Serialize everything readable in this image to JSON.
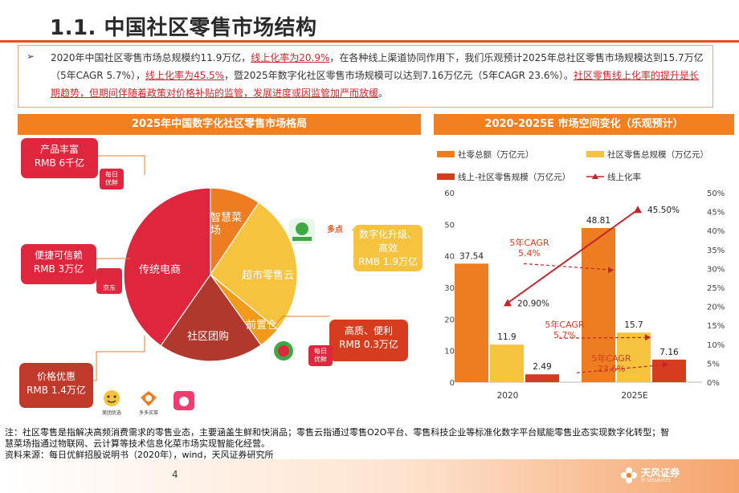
{
  "page": {
    "title": "1.1. 中国社区零售市场结构",
    "page_number": "4",
    "brand": "天风证券",
    "brand_sub": "TF SECURITIES"
  },
  "summary": {
    "bullet": "➢",
    "p1": "2020年中国社区零售市场总规模约11.9万亿，",
    "h1": "线上化率为20.9%",
    "p2": "，在各种线上渠道协同作用下，我们乐观预计2025年总社区零售市场规模达到15.7万亿（5年CAGR 5.7%），",
    "h2": "线上化率为45.5%",
    "p3": "，暨2025年数字化社区零售市场规模可以达到7.16万亿元（5年CAGR 23.6%）。",
    "h3": "社区零售线上化率的提升是长期趋势，但期间伴随着政策对价格补贴的监管，发展进度或因监管加严而放缓",
    "p4": "。"
  },
  "left_panel": {
    "header": "2025年中国数字化社区零售市场格局",
    "segments": [
      {
        "name": "智慧菜场",
        "line1": "智慧菜",
        "line2": "场",
        "share": 0.094,
        "color": "#ee7d22"
      },
      {
        "name": "超市零售云",
        "line1": "超市零售云",
        "line2": "",
        "share": 0.265,
        "color": "#f6c33f"
      },
      {
        "name": "前置仓",
        "line1": "前置仓",
        "line2": "",
        "share": 0.042,
        "color": "#f29a1a"
      },
      {
        "name": "社区团购",
        "line1": "社区团购",
        "line2": "",
        "share": 0.196,
        "color": "#b0382c"
      },
      {
        "name": "传统电商",
        "line1": "传统电商",
        "line2": "",
        "share": 0.403,
        "color": "#e0263d"
      }
    ],
    "callouts": {
      "product": {
        "line1": "产品丰富",
        "line2": "RMB 6千亿"
      },
      "convenience": {
        "line1": "便捷可信赖",
        "line2": "RMB 3万亿"
      },
      "price": {
        "line1": "价格优惠",
        "line2": "RMB 1.4万亿"
      },
      "digital": {
        "line1": "数字化升级、",
        "line2": "高效",
        "line3": "RMB 1.9万亿"
      },
      "quality": {
        "line1": "高质、便利",
        "line2": "RMB 0.3万亿"
      }
    },
    "logos": {
      "missfresh": "每日\n优鲜",
      "jd": "京东",
      "meituan": "美团优选",
      "duoduo": "多多买菜",
      "xingsheng": "淘菜菜",
      "dmall": "多点",
      "jdfresh": "京东到家",
      "missfresh2": "每日\n优鲜",
      "nonghe": "叮咚买菜"
    }
  },
  "right_panel": {
    "header": "2020-2025E 市场空间变化（乐观预计）",
    "legend": {
      "total": "社零总额（万亿元）",
      "community": "社区零售总规模（万亿元）",
      "online": "线上-社区零售规模（万亿元）",
      "rate": "线上化率"
    },
    "cagr": [
      {
        "line1": "5年CAGR",
        "line2": "5.4%"
      },
      {
        "line1": "5年CAGR",
        "line2": "5.7%"
      },
      {
        "line1": "5年CAGR",
        "line2": "23.6%"
      }
    ]
  },
  "chart_data": {
    "type": "bar",
    "categories": [
      "2020",
      "2025E"
    ],
    "series": [
      {
        "name": "社零总额（万亿元）",
        "values": [
          37.54,
          48.81
        ],
        "color": "#ee7d22",
        "axis": "left"
      },
      {
        "name": "社区零售总规模（万亿元）",
        "values": [
          11.9,
          15.7
        ],
        "color": "#f6c33f",
        "axis": "left"
      },
      {
        "name": "线上-社区零售规模（万亿元）",
        "values": [
          2.49,
          7.16
        ],
        "color": "#d63d1f",
        "axis": "left"
      },
      {
        "name": "线上化率",
        "type": "line",
        "values": [
          20.9,
          45.5
        ],
        "labels": [
          "20.90%",
          "45.50%"
        ],
        "color": "#c0272d",
        "axis": "right"
      }
    ],
    "left_axis": {
      "ylim": [
        0,
        60
      ],
      "ticks": [
        "0",
        "10",
        "20",
        "30",
        "40",
        "50",
        "60"
      ]
    },
    "right_axis": {
      "ylim": [
        0,
        50
      ],
      "ticks": [
        "0%",
        "5%",
        "10%",
        "15%",
        "20%",
        "25%",
        "30%",
        "35%",
        "40%",
        "45%",
        "50%"
      ]
    },
    "bar_labels": [
      [
        "37.54",
        "11.9",
        "2.49"
      ],
      [
        "48.81",
        "15.7",
        "7.16"
      ]
    ],
    "grid": false,
    "legend_position": "top"
  },
  "footnote": {
    "line1": "注：社区零售是指解决高频消费需求的零售业态，主要涵盖生鲜和快消品；零售云指通过零售O2O平台、零售科技企业等标准化数字平台赋能零售业态实现数字化转型；智",
    "line2": "慧菜场指通过物联网、云计算等技术信息化菜市场实现智能化经营。",
    "line3": "资料来源：每日优鲜招股说明书（2020年），wind，天风证券研究所"
  }
}
